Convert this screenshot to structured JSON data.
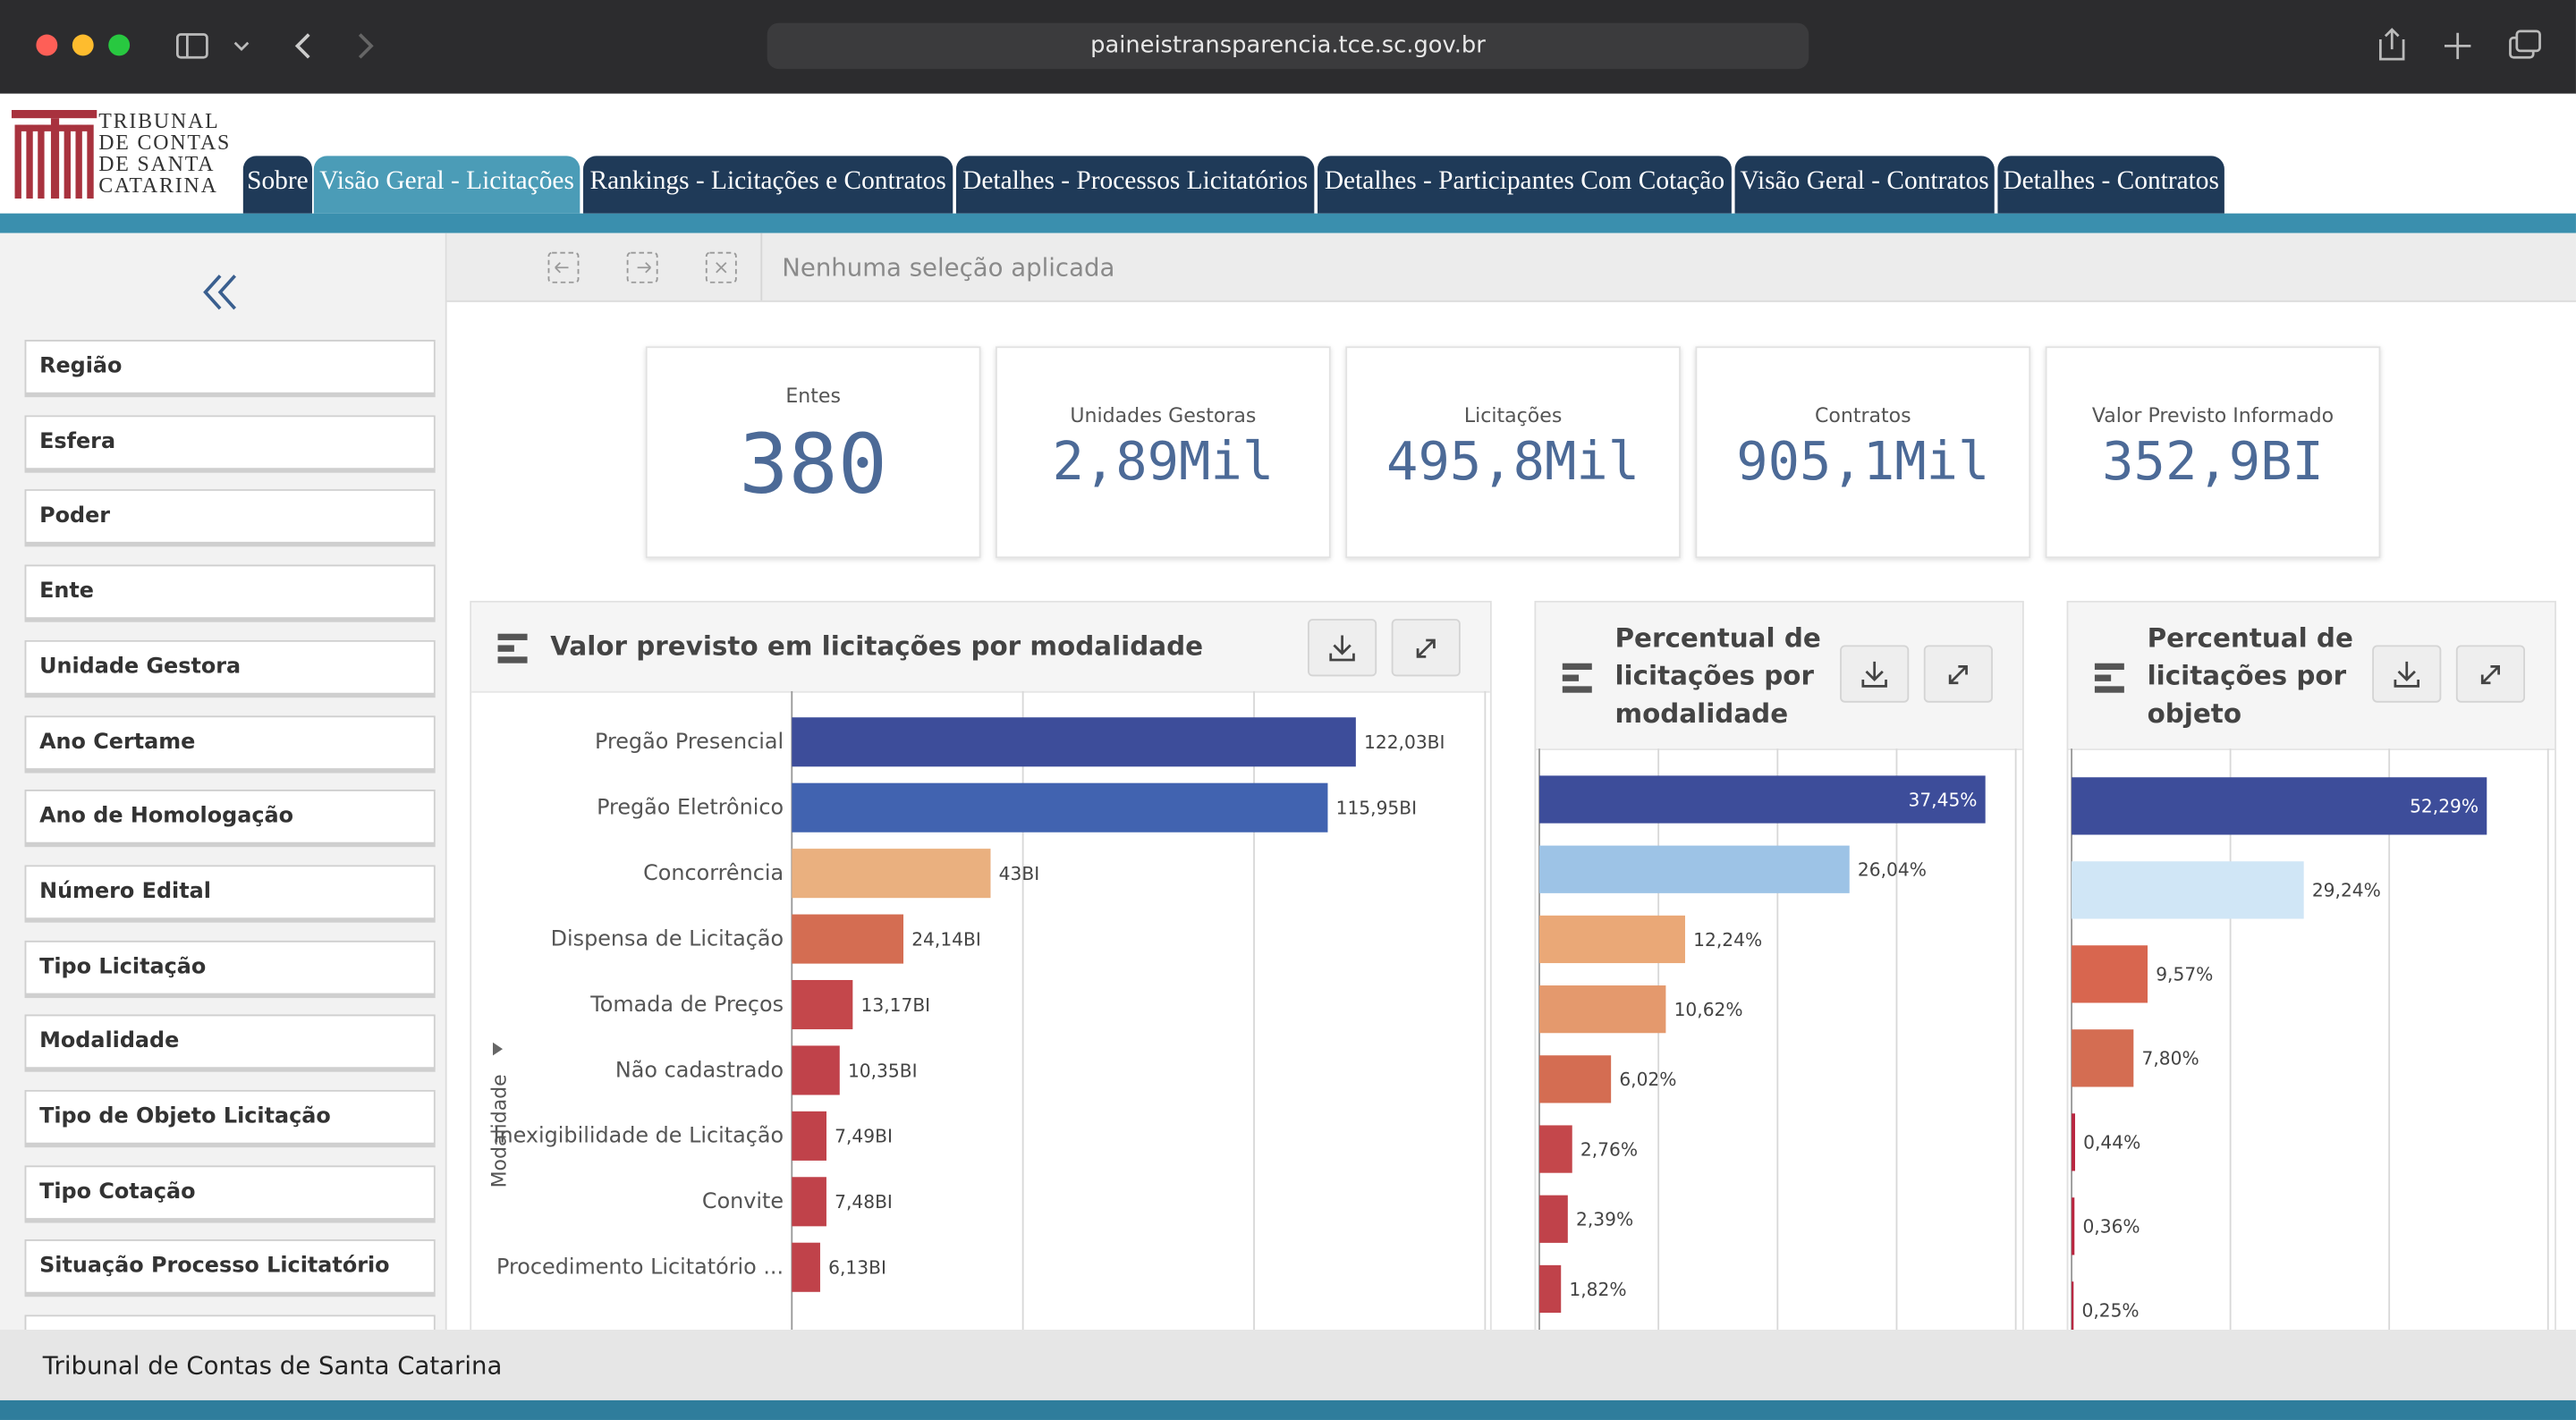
{
  "browser": {
    "url": "paineistransparencia.tce.sc.gov.br"
  },
  "header": {
    "logo": [
      "TRIBUNAL",
      "DE CONTAS",
      "DE SANTA",
      "CATARINA"
    ],
    "tabs": [
      "Sobre",
      "Visão Geral - Licitações",
      "Rankings - Licitações e Contratos",
      "Detalhes - Processos Licitatórios",
      "Detalhes - Participantes Com Cotação",
      "Visão Geral - Contratos",
      "Detalhes - Contratos"
    ],
    "active_tab": 1
  },
  "toolbar": {
    "selection": "Nenhuma seleção aplicada"
  },
  "sidebar": {
    "filters": [
      "Região",
      "Esfera",
      "Poder",
      "Ente",
      "Unidade Gestora",
      "Ano Certame",
      "Ano de Homologação",
      "Número Edital",
      "Tipo Licitação",
      "Modalidade",
      "Tipo de Objeto Licitação",
      "Tipo Cotação",
      "Situação Processo Licitatório"
    ]
  },
  "kpis": [
    {
      "label": "Entes",
      "value": "380"
    },
    {
      "label": "Unidades Gestoras",
      "value": "2,89Mil"
    },
    {
      "label": "Licitações",
      "value": "495,8Mil"
    },
    {
      "label": "Contratos",
      "value": "905,1Mil"
    },
    {
      "label": "Valor Previsto Informado",
      "value": "352,9BI"
    }
  ],
  "chart_data": [
    {
      "type": "bar",
      "orientation": "horizontal",
      "title": "Valor previsto em licitações por modalidade",
      "axis_label": "Modalidade",
      "categories": [
        "Pregão Presencial",
        "Pregão Eletrônico",
        "Concorrência",
        "Dispensa de Licitação",
        "Tomada de Preços",
        "Não cadastrado",
        "Inexigibilidade de Licitação",
        "Convite",
        "Procedimento Licitatório ..."
      ],
      "values": [
        122.03,
        115.95,
        43,
        24.14,
        13.17,
        10.35,
        7.49,
        7.48,
        6.13
      ],
      "value_labels": [
        "122,03BI",
        "115,95BI",
        "43BI",
        "24,14BI",
        "13,17BI",
        "10,35BI",
        "7,49BI",
        "7,48BI",
        "6,13BI"
      ],
      "colors": [
        "#3d4d9a",
        "#4163b0",
        "#eab07f",
        "#d46d52",
        "#c4474b",
        "#c0424a",
        "#c0424a",
        "#c0424a",
        "#c0424a"
      ],
      "xlim": [
        0,
        150
      ],
      "xticks": [
        0,
        50,
        100,
        150
      ],
      "grid": true
    },
    {
      "type": "bar",
      "orientation": "horizontal",
      "title": "Percentual de licitações por modalidade",
      "values": [
        37.45,
        26.04,
        12.24,
        10.62,
        6.02,
        2.76,
        2.39,
        1.82
      ],
      "value_labels": [
        "37,45%",
        "26,04%",
        "12,24%",
        "10,62%",
        "6,02%",
        "2,76%",
        "2,39%",
        "1,82%"
      ],
      "colors": [
        "#3d4d9a",
        "#9dc3e6",
        "#eaa877",
        "#e4996d",
        "#d46d52",
        "#c4474b",
        "#c0424a",
        "#c0424a"
      ],
      "xlim": [
        0,
        40
      ],
      "xticks": [
        0,
        10,
        20,
        30,
        40
      ],
      "grid": true
    },
    {
      "type": "bar",
      "orientation": "horizontal",
      "title": "Percentual de licitações por objeto",
      "values": [
        52.29,
        29.24,
        9.57,
        7.8,
        0.44,
        0.36,
        0.25
      ],
      "value_labels": [
        "52,29%",
        "29,24%",
        "9,57%",
        "7,80%",
        "0,44%",
        "0,36%",
        "0,25%"
      ],
      "colors": [
        "#3d4d9a",
        "#d0e6f6",
        "#d8664f",
        "#d46d52",
        "#b8263f",
        "#b8263f",
        "#b8263f"
      ],
      "xlim": [
        0,
        60
      ],
      "xticks": [
        0,
        20,
        40,
        60
      ],
      "grid": true
    }
  ],
  "footer": {
    "text": "Tribunal de Contas de Santa Catarina"
  }
}
